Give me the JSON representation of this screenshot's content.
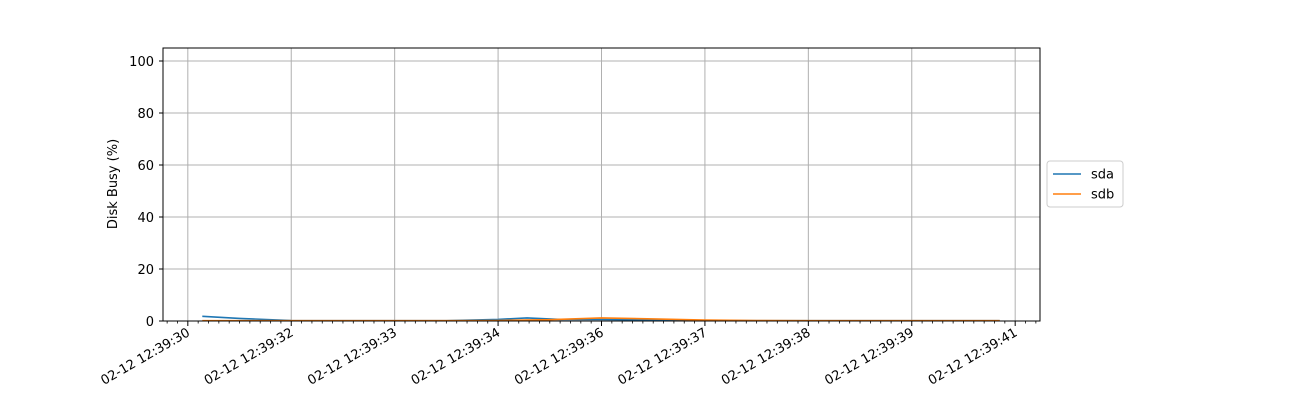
{
  "chart_data": {
    "type": "line",
    "ylabel": "Disk Busy (%)",
    "xlabel": "",
    "ylim": [
      0,
      105
    ],
    "yticks": [
      0,
      20,
      40,
      60,
      80,
      100
    ],
    "xlim": [
      -0.24,
      8.24
    ],
    "xticks": [
      {
        "pos": 0,
        "label": "02-12 12:39:30"
      },
      {
        "pos": 1,
        "label": "02-12 12:39:32"
      },
      {
        "pos": 2,
        "label": "02-12 12:39:33"
      },
      {
        "pos": 3,
        "label": "02-12 12:39:34"
      },
      {
        "pos": 4,
        "label": "02-12 12:39:36"
      },
      {
        "pos": 5,
        "label": "02-12 12:39:37"
      },
      {
        "pos": 6,
        "label": "02-12 12:39:38"
      },
      {
        "pos": 7,
        "label": "02-12 12:39:39"
      },
      {
        "pos": 8,
        "label": "02-12 12:39:41"
      }
    ],
    "minor_ticks_per_major": 10,
    "grid": true,
    "legend_placement": "right",
    "series": [
      {
        "name": "sda",
        "color": "#1f77b4",
        "x": [
          0.14,
          0.5,
          1.0,
          1.5,
          2.0,
          2.5,
          3.0,
          3.28,
          3.6,
          4.0,
          4.5,
          5.0,
          5.5,
          6.0,
          6.5,
          7.0,
          7.5,
          7.85
        ],
        "y": [
          1.8,
          1.0,
          0.2,
          0.1,
          0.1,
          0.1,
          0.6,
          1.2,
          0.6,
          0.6,
          0.4,
          0.2,
          0.1,
          0.1,
          0.1,
          0.1,
          0.1,
          0.1
        ]
      },
      {
        "name": "sdb",
        "color": "#ff7f0e",
        "x": [
          0.14,
          0.5,
          1.0,
          1.5,
          2.0,
          2.5,
          3.0,
          3.5,
          4.0,
          4.5,
          5.0,
          5.5,
          6.0,
          6.5,
          7.0,
          7.5,
          7.85
        ],
        "y": [
          0.1,
          0.1,
          0.1,
          0.1,
          0.1,
          0.1,
          0.2,
          0.5,
          1.2,
          0.8,
          0.4,
          0.2,
          0.1,
          0.1,
          0.1,
          0.1,
          0.1
        ]
      }
    ]
  }
}
